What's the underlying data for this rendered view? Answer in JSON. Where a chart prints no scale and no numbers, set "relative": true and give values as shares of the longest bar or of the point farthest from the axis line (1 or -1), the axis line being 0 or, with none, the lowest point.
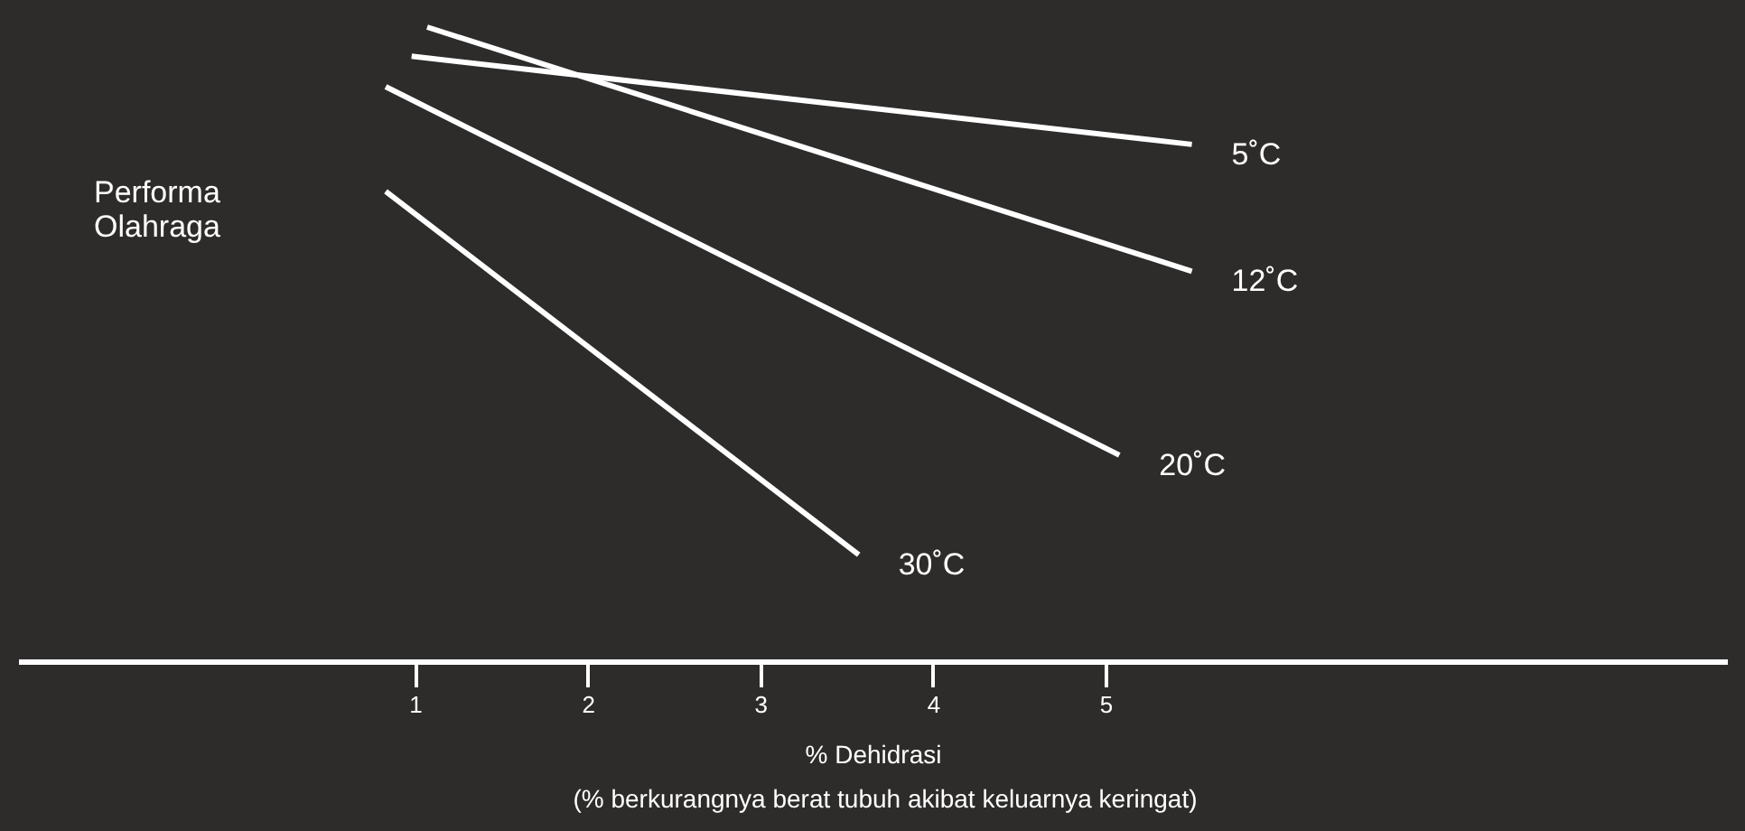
{
  "chart_data": {
    "type": "line",
    "relative": true,
    "ylabel": "Performa Olahraga",
    "xlabel": "% Dehidrasi",
    "annotations": [
      "(% berkurangnya berat tubuh akibat keluarnya keringat)"
    ],
    "xlim": [
      -1.3,
      8.6
    ],
    "xticks": [
      1,
      2,
      3,
      4,
      5
    ],
    "grid": false,
    "marker": "none",
    "line_style": "solid",
    "series": [
      {
        "name": "5˚C",
        "color": "#ffffff",
        "x": [
          0.98,
          5.5
        ],
        "values": [
          0.954,
          0.815
        ]
      },
      {
        "name": "12˚C",
        "color": "#ffffff",
        "x": [
          1.07,
          5.5
        ],
        "values": [
          1.0,
          0.615
        ]
      },
      {
        "name": "20˚C",
        "color": "#ffffff",
        "x": [
          0.83,
          5.08
        ],
        "values": [
          0.906,
          0.325
        ]
      },
      {
        "name": "30˚C",
        "color": "#ffffff",
        "x": [
          0.83,
          3.57
        ],
        "values": [
          0.741,
          0.168
        ]
      }
    ]
  }
}
